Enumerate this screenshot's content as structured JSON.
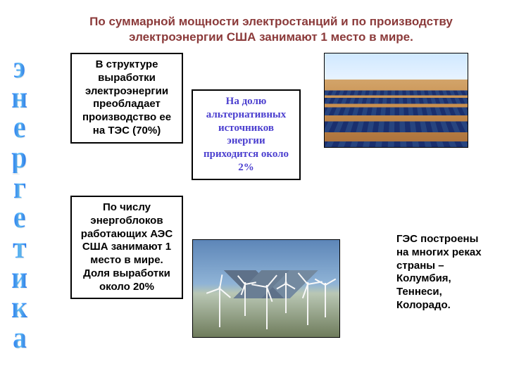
{
  "title_color": "#8b3a3a",
  "title": "По суммарной мощности электростанций и по производству электроэнергии США занимают 1 место в мире.",
  "vertical_word": "энергетика",
  "vertical_word_color_gradient": [
    "#2a7fff",
    "#69c8ff",
    "#2a7fff"
  ],
  "boxes": {
    "tes": {
      "text": "В структуре выработки электроэнергии преобладает производство ее на ТЭС (70%)",
      "color": "#000000",
      "border_color": "#000000"
    },
    "alt": {
      "text": "На долю альтернативных источников энергии приходится около 2%",
      "color": "#4b3fcf",
      "border_color": "#000000"
    },
    "aes": {
      "text": "По числу энергоблоков работающих АЭС США занимают 1 место в мире. Доля выработки около 20%",
      "color": "#000000",
      "border_color": "#000000"
    },
    "ges": {
      "text": "ГЭС построены на многих реках страны – Колумбия, Теннеси, Колорадо.",
      "color": "#000000",
      "border": false
    }
  },
  "images": {
    "solar_caption": "solar-panel-field",
    "wind_caption": "wind-turbines"
  },
  "background_color": "#ffffff"
}
